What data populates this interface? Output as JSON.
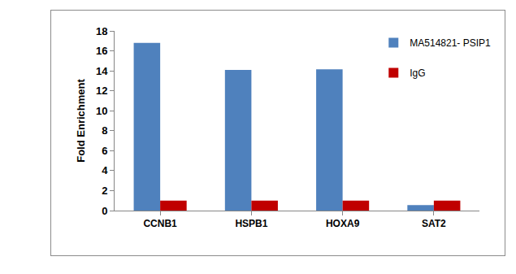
{
  "chart_data": {
    "type": "bar",
    "categories": [
      "CCNB1",
      "HSPB1",
      "HOXA9",
      "SAT2"
    ],
    "series": [
      {
        "name": "MA514821- PSIP1",
        "color": "#4f81bd",
        "values": [
          16.8,
          14.1,
          14.15,
          0.55
        ]
      },
      {
        "name": "IgG",
        "color": "#c00000",
        "values": [
          1,
          1,
          1,
          1
        ]
      }
    ],
    "y_label": "Fold Enrichment",
    "ylim": [
      0,
      18
    ],
    "yticks": [
      0,
      2,
      4,
      6,
      8,
      10,
      12,
      14,
      16,
      18
    ],
    "grid": false,
    "legend": "upper right"
  }
}
